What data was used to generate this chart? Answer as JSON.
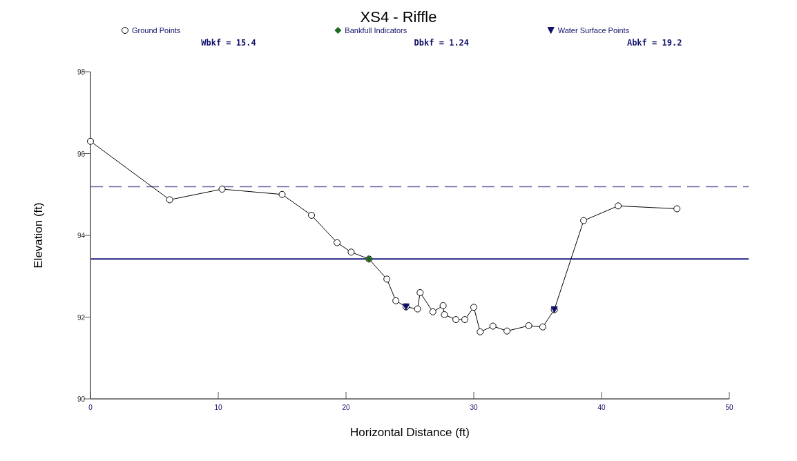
{
  "chart_data": {
    "type": "line",
    "title": "XS4 - Riffle",
    "xlabel": "Horizontal Distance (ft)",
    "ylabel": "Elevation (ft)",
    "xlim": [
      0,
      50
    ],
    "xticks": [
      0,
      10,
      20,
      30,
      40,
      50
    ],
    "ylim": [
      90,
      98
    ],
    "yticks": [
      90,
      92,
      94,
      96,
      98
    ],
    "legend": "top",
    "series": [
      {
        "name": "Ground Points",
        "marker": "circle",
        "color": "#000000",
        "x": [
          0,
          6.2,
          10.3,
          15.0,
          17.3,
          19.3,
          20.4,
          21.8,
          23.2,
          23.9,
          24.7,
          25.6,
          25.8,
          26.8,
          27.6,
          27.7,
          28.6,
          29.3,
          30.0,
          30.5,
          31.5,
          32.6,
          34.3,
          35.4,
          36.3,
          38.6,
          41.3,
          45.9
        ],
        "values": [
          96.3,
          94.87,
          95.13,
          95.0,
          94.49,
          93.82,
          93.59,
          93.42,
          92.93,
          92.4,
          92.25,
          92.2,
          92.6,
          92.13,
          92.28,
          92.06,
          91.94,
          91.94,
          92.24,
          91.64,
          91.78,
          91.66,
          91.79,
          91.76,
          92.18,
          94.36,
          94.72,
          94.65
        ]
      },
      {
        "name": "Bankfull Indicators",
        "type": "scatter",
        "marker": "diamond",
        "color": "#1e6b1e",
        "x": [
          21.8
        ],
        "values": [
          93.42
        ]
      },
      {
        "name": "Water Surface Points",
        "type": "scatter",
        "marker": "triangle",
        "color": "#10106a",
        "x": [
          24.7,
          36.3
        ],
        "values": [
          92.25,
          92.18
        ]
      }
    ],
    "ref_lines": [
      {
        "axis": "y",
        "value": 95.19,
        "color": "#6a6aa8",
        "line_style": "dashed"
      },
      {
        "axis": "y",
        "value": 93.42,
        "color": "#1a1a80",
        "line_style": "solid"
      }
    ],
    "annotations": [
      "Wbkf = 15.4",
      "Dbkf = 1.24",
      "Abkf = 19.2"
    ]
  }
}
